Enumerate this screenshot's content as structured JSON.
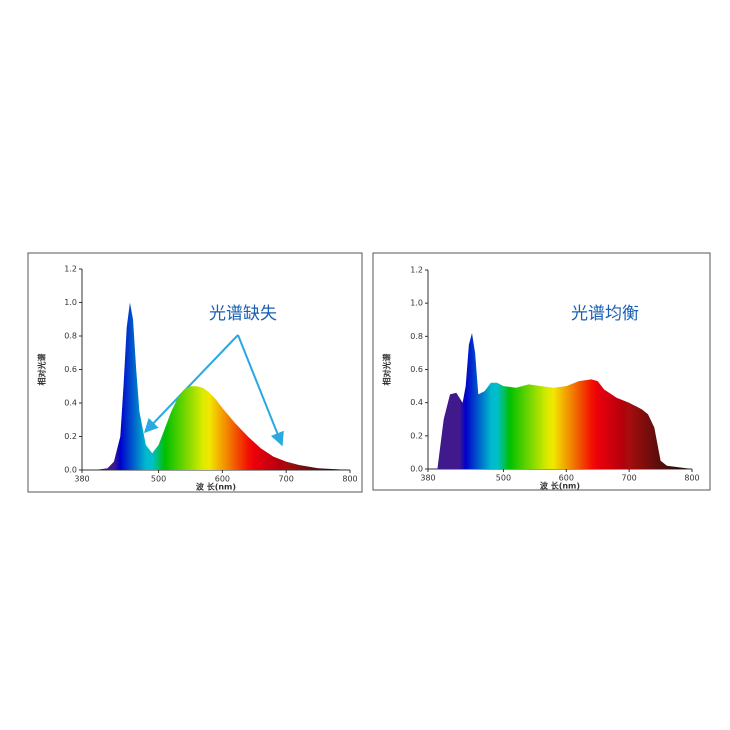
{
  "chart_data": [
    {
      "type": "area",
      "annotation": "光谱缺失",
      "x_label": "波 长(nm)",
      "y_label": "相对光谱",
      "x": [
        380,
        400,
        420,
        430,
        440,
        445,
        450,
        455,
        460,
        465,
        470,
        480,
        490,
        500,
        510,
        520,
        530,
        540,
        550,
        560,
        570,
        580,
        590,
        600,
        620,
        640,
        660,
        680,
        700,
        720,
        750,
        800
      ],
      "values": [
        0,
        0,
        0.01,
        0.05,
        0.2,
        0.5,
        0.85,
        1.0,
        0.9,
        0.6,
        0.35,
        0.15,
        0.1,
        0.15,
        0.25,
        0.35,
        0.43,
        0.48,
        0.5,
        0.5,
        0.49,
        0.46,
        0.42,
        0.37,
        0.28,
        0.2,
        0.13,
        0.08,
        0.05,
        0.03,
        0.01,
        0
      ],
      "xlim": [
        380,
        800
      ],
      "ylim": [
        0,
        1.2
      ],
      "xticks": [
        380,
        500,
        600,
        700,
        800
      ],
      "yticks": [
        {
          "value": 0,
          "label": "0.0"
        },
        0.2,
        0.4,
        0.6,
        0.8,
        {
          "value": 1,
          "label": "1.0"
        },
        1.2
      ]
    },
    {
      "type": "area",
      "annotation": "光谱均衡",
      "x_label": "波 长(nm)",
      "y_label": "相对光谱",
      "x": [
        380,
        395,
        405,
        415,
        425,
        435,
        440,
        445,
        450,
        455,
        460,
        470,
        480,
        490,
        500,
        520,
        540,
        560,
        580,
        600,
        620,
        640,
        650,
        660,
        680,
        700,
        720,
        730,
        740,
        750,
        760,
        800
      ],
      "values": [
        0,
        0,
        0.3,
        0.45,
        0.46,
        0.4,
        0.5,
        0.75,
        0.82,
        0.7,
        0.45,
        0.47,
        0.52,
        0.52,
        0.5,
        0.49,
        0.51,
        0.5,
        0.49,
        0.5,
        0.53,
        0.54,
        0.53,
        0.48,
        0.43,
        0.4,
        0.36,
        0.33,
        0.25,
        0.05,
        0.02,
        0
      ],
      "xlim": [
        380,
        800
      ],
      "ylim": [
        0,
        1.2
      ],
      "xticks": [
        380,
        500,
        600,
        700,
        800
      ],
      "yticks": [
        {
          "value": 0,
          "label": "0.0"
        },
        0.2,
        0.4,
        0.6,
        0.8,
        {
          "value": 1,
          "label": "1.0"
        },
        1.2
      ]
    }
  ]
}
